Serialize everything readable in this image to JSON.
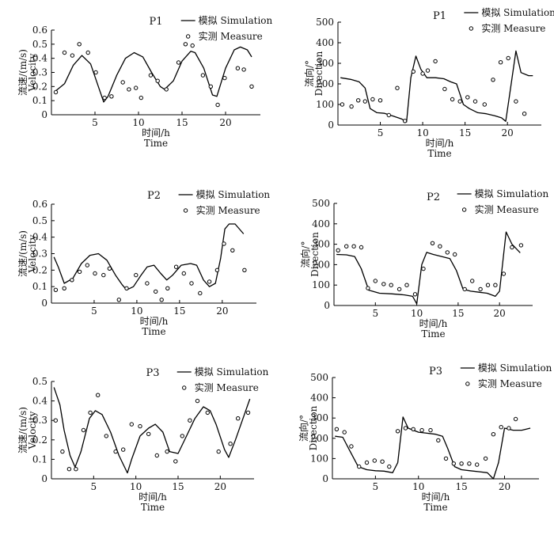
{
  "common": {
    "sim_legend": "模拟 Simulation",
    "meas_legend": "实测 Measure",
    "xlabel_cn": "时间/h",
    "xlabel_en": "Time",
    "xticks": [
      5,
      10,
      15,
      20
    ],
    "xlim": [
      0,
      24
    ]
  },
  "chart_data": [
    {
      "type": "line",
      "title": "P1",
      "quantity": "velocity",
      "ylabel_cn": "流速/(m/s)",
      "ylabel_en": "Velocity",
      "ylim": [
        0,
        0.6
      ],
      "yticks": [
        0,
        0.1,
        0.2,
        0.3,
        0.4,
        0.5,
        0.6
      ],
      "yticklabels": [
        "0",
        "0.1",
        "0.2",
        "0.3",
        "0.4",
        "0.5",
        "0.6"
      ],
      "simulation": [
        [
          0.5,
          0.17
        ],
        [
          1.5,
          0.22
        ],
        [
          2.5,
          0.35
        ],
        [
          3.5,
          0.42
        ],
        [
          4.5,
          0.36
        ],
        [
          5.5,
          0.18
        ],
        [
          6,
          0.09
        ],
        [
          6.5,
          0.13
        ],
        [
          7.5,
          0.28
        ],
        [
          8.5,
          0.4
        ],
        [
          9.5,
          0.44
        ],
        [
          10.5,
          0.41
        ],
        [
          11.5,
          0.3
        ],
        [
          12.5,
          0.2
        ],
        [
          13,
          0.18
        ],
        [
          14,
          0.24
        ],
        [
          15,
          0.38
        ],
        [
          16,
          0.45
        ],
        [
          16.5,
          0.44
        ],
        [
          17.5,
          0.33
        ],
        [
          18.5,
          0.14
        ],
        [
          19,
          0.13
        ],
        [
          20,
          0.33
        ],
        [
          21,
          0.46
        ],
        [
          21.7,
          0.48
        ],
        [
          22.5,
          0.46
        ],
        [
          23,
          0.41
        ]
      ],
      "measure": [
        [
          0.5,
          0.16
        ],
        [
          1.5,
          0.44
        ],
        [
          2.4,
          0.42
        ],
        [
          3.2,
          0.5
        ],
        [
          4.2,
          0.44
        ],
        [
          5.1,
          0.3
        ],
        [
          6.1,
          0.12
        ],
        [
          6.9,
          0.13
        ],
        [
          8.2,
          0.23
        ],
        [
          8.9,
          0.18
        ],
        [
          9.7,
          0.19
        ],
        [
          10.3,
          0.12
        ],
        [
          11.4,
          0.28
        ],
        [
          12.2,
          0.24
        ],
        [
          13.2,
          0.18
        ],
        [
          14.6,
          0.37
        ],
        [
          15.4,
          0.5
        ],
        [
          16.2,
          0.49
        ],
        [
          17.4,
          0.28
        ],
        [
          18.3,
          0.2
        ],
        [
          19.1,
          0.07
        ],
        [
          19.9,
          0.26
        ],
        [
          21.4,
          0.33
        ],
        [
          22.1,
          0.32
        ],
        [
          23,
          0.2
        ]
      ]
    },
    {
      "type": "line",
      "title": "P1",
      "quantity": "direction",
      "ylabel_cn": "流向/°",
      "ylabel_en": "Direction",
      "ylim": [
        0,
        500
      ],
      "yticks": [
        0,
        100,
        200,
        300,
        400,
        500
      ],
      "yticklabels": [
        "0",
        "100",
        "200",
        "300",
        "400",
        "500"
      ],
      "simulation": [
        [
          0.3,
          230
        ],
        [
          1.5,
          222
        ],
        [
          2.5,
          210
        ],
        [
          3.2,
          180
        ],
        [
          3.8,
          80
        ],
        [
          4.6,
          60
        ],
        [
          5.5,
          57
        ],
        [
          6.5,
          44
        ],
        [
          7.5,
          30
        ],
        [
          8.1,
          15
        ],
        [
          8.6,
          230
        ],
        [
          9.2,
          335
        ],
        [
          9.8,
          270
        ],
        [
          10.5,
          230
        ],
        [
          11.5,
          230
        ],
        [
          12.5,
          225
        ],
        [
          13.3,
          210
        ],
        [
          14,
          200
        ],
        [
          14.8,
          100
        ],
        [
          15.5,
          80
        ],
        [
          16.5,
          60
        ],
        [
          17.5,
          55
        ],
        [
          18.5,
          45
        ],
        [
          19.3,
          35
        ],
        [
          19.8,
          18
        ],
        [
          20.3,
          160
        ],
        [
          21,
          360
        ],
        [
          21.6,
          255
        ],
        [
          22.5,
          240
        ],
        [
          23,
          240
        ]
      ],
      "measure": [
        [
          0.5,
          100
        ],
        [
          1.6,
          90
        ],
        [
          2.4,
          120
        ],
        [
          3.2,
          115
        ],
        [
          4.1,
          125
        ],
        [
          5,
          120
        ],
        [
          6,
          48
        ],
        [
          7,
          180
        ],
        [
          7.9,
          20
        ],
        [
          8.9,
          260
        ],
        [
          10,
          250
        ],
        [
          10.6,
          265
        ],
        [
          11.5,
          310
        ],
        [
          12.6,
          175
        ],
        [
          13.5,
          125
        ],
        [
          14.4,
          115
        ],
        [
          15.3,
          135
        ],
        [
          16.2,
          115
        ],
        [
          17.3,
          100
        ],
        [
          18.3,
          220
        ],
        [
          19.2,
          305
        ],
        [
          20.1,
          325
        ],
        [
          21,
          115
        ],
        [
          22,
          55
        ]
      ]
    },
    {
      "type": "line",
      "title": "P2",
      "quantity": "velocity",
      "ylabel_cn": "流速/(m/s)",
      "ylabel_en": "Velocity",
      "ylim": [
        0,
        0.6
      ],
      "yticks": [
        0,
        0.1,
        0.2,
        0.3,
        0.4,
        0.5,
        0.6
      ],
      "yticklabels": [
        "0",
        "0.1",
        "0.2",
        "0.3",
        "0.4",
        "0.5",
        "0.6"
      ],
      "simulation": [
        [
          0.3,
          0.28
        ],
        [
          0.8,
          0.22
        ],
        [
          1.5,
          0.12
        ],
        [
          2.5,
          0.15
        ],
        [
          3.5,
          0.24
        ],
        [
          4.5,
          0.29
        ],
        [
          5.5,
          0.3
        ],
        [
          6.5,
          0.26
        ],
        [
          7.5,
          0.17
        ],
        [
          8.3,
          0.11
        ],
        [
          8.8,
          0.08
        ],
        [
          9.6,
          0.1
        ],
        [
          10.5,
          0.17
        ],
        [
          11.2,
          0.22
        ],
        [
          12,
          0.23
        ],
        [
          12.8,
          0.18
        ],
        [
          13.5,
          0.14
        ],
        [
          14.2,
          0.17
        ],
        [
          15.2,
          0.23
        ],
        [
          16.3,
          0.24
        ],
        [
          17,
          0.23
        ],
        [
          17.8,
          0.14
        ],
        [
          18.5,
          0.1
        ],
        [
          19.2,
          0.12
        ],
        [
          19.8,
          0.27
        ],
        [
          20.3,
          0.45
        ],
        [
          20.8,
          0.48
        ],
        [
          21.5,
          0.48
        ],
        [
          22.5,
          0.42
        ]
      ],
      "measure": [
        [
          0.5,
          0.08
        ],
        [
          1.5,
          0.09
        ],
        [
          2.4,
          0.14
        ],
        [
          3.3,
          0.19
        ],
        [
          4.2,
          0.23
        ],
        [
          5.1,
          0.18
        ],
        [
          6.1,
          0.17
        ],
        [
          6.8,
          0.21
        ],
        [
          7.9,
          0.02
        ],
        [
          8.8,
          0.09
        ],
        [
          9.9,
          0.17
        ],
        [
          11.2,
          0.12
        ],
        [
          12.2,
          0.07
        ],
        [
          12.9,
          0.02
        ],
        [
          13.6,
          0.09
        ],
        [
          14.6,
          0.22
        ],
        [
          15.5,
          0.18
        ],
        [
          16.4,
          0.12
        ],
        [
          17.4,
          0.06
        ],
        [
          18.5,
          0.13
        ],
        [
          19.4,
          0.2
        ],
        [
          20.2,
          0.36
        ],
        [
          21.2,
          0.32
        ],
        [
          22.6,
          0.2
        ]
      ]
    },
    {
      "type": "line",
      "title": "P2",
      "quantity": "direction",
      "ylabel_cn": "流向/°",
      "ylabel_en": "Direction",
      "ylim": [
        0,
        500
      ],
      "yticks": [
        0,
        100,
        200,
        300,
        400,
        500
      ],
      "yticklabels": [
        "0",
        "100",
        "200",
        "300",
        "400",
        "500"
      ],
      "simulation": [
        [
          0.3,
          250
        ],
        [
          1.5,
          248
        ],
        [
          2.5,
          240
        ],
        [
          3.3,
          180
        ],
        [
          4.2,
          75
        ],
        [
          5.5,
          60
        ],
        [
          7,
          57
        ],
        [
          8.5,
          52
        ],
        [
          9.5,
          45
        ],
        [
          10,
          8
        ],
        [
          10.6,
          200
        ],
        [
          11.2,
          260
        ],
        [
          12,
          250
        ],
        [
          13,
          240
        ],
        [
          14,
          230
        ],
        [
          14.8,
          170
        ],
        [
          15.6,
          80
        ],
        [
          16.5,
          70
        ],
        [
          17.5,
          65
        ],
        [
          18.5,
          60
        ],
        [
          19.5,
          45
        ],
        [
          20,
          70
        ],
        [
          20.8,
          360
        ],
        [
          21.5,
          300
        ],
        [
          22.5,
          258
        ]
      ],
      "measure": [
        [
          0.5,
          270
        ],
        [
          1.5,
          290
        ],
        [
          2.4,
          290
        ],
        [
          3.3,
          285
        ],
        [
          4.1,
          85
        ],
        [
          5,
          120
        ],
        [
          6,
          105
        ],
        [
          6.9,
          100
        ],
        [
          7.9,
          80
        ],
        [
          8.8,
          100
        ],
        [
          9.8,
          55
        ],
        [
          10.8,
          180
        ],
        [
          11.9,
          305
        ],
        [
          12.8,
          290
        ],
        [
          13.7,
          260
        ],
        [
          14.6,
          250
        ],
        [
          15.8,
          80
        ],
        [
          16.7,
          120
        ],
        [
          17.7,
          80
        ],
        [
          18.6,
          100
        ],
        [
          19.5,
          100
        ],
        [
          20.5,
          155
        ],
        [
          21.5,
          285
        ],
        [
          22.6,
          295
        ]
      ]
    },
    {
      "type": "line",
      "title": "P3",
      "quantity": "velocity",
      "ylabel_cn": "流速/(m/s)",
      "ylabel_en": "Velocity",
      "ylim": [
        0,
        0.5
      ],
      "yticks": [
        0,
        0.1,
        0.2,
        0.3,
        0.4,
        0.5
      ],
      "yticklabels": [
        "0",
        "0.1",
        "0.2",
        "0.3",
        "0.4",
        "0.5"
      ],
      "simulation": [
        [
          0.3,
          0.47
        ],
        [
          1,
          0.38
        ],
        [
          1.5,
          0.25
        ],
        [
          2.2,
          0.12
        ],
        [
          2.8,
          0.06
        ],
        [
          3.5,
          0.14
        ],
        [
          4.5,
          0.31
        ],
        [
          5.2,
          0.35
        ],
        [
          6,
          0.33
        ],
        [
          7,
          0.24
        ],
        [
          8,
          0.12
        ],
        [
          9,
          0.03
        ],
        [
          9.5,
          0.1
        ],
        [
          10.5,
          0.22
        ],
        [
          11.5,
          0.26
        ],
        [
          12.3,
          0.28
        ],
        [
          13.2,
          0.24
        ],
        [
          14,
          0.14
        ],
        [
          15,
          0.13
        ],
        [
          16,
          0.22
        ],
        [
          17,
          0.31
        ],
        [
          18,
          0.37
        ],
        [
          18.8,
          0.35
        ],
        [
          19.5,
          0.28
        ],
        [
          20.5,
          0.15
        ],
        [
          21,
          0.11
        ],
        [
          21.8,
          0.2
        ],
        [
          23.5,
          0.41
        ]
      ],
      "measure": [
        [
          0.5,
          0.3
        ],
        [
          1.3,
          0.14
        ],
        [
          2.1,
          0.05
        ],
        [
          2.9,
          0.05
        ],
        [
          3.8,
          0.25
        ],
        [
          4.6,
          0.34
        ],
        [
          5.5,
          0.43
        ],
        [
          6.5,
          0.22
        ],
        [
          7.6,
          0.14
        ],
        [
          8.5,
          0.15
        ],
        [
          9.5,
          0.28
        ],
        [
          10.5,
          0.27
        ],
        [
          11.5,
          0.23
        ],
        [
          12.5,
          0.12
        ],
        [
          13.7,
          0.14
        ],
        [
          14.7,
          0.09
        ],
        [
          15.5,
          0.22
        ],
        [
          16.4,
          0.3
        ],
        [
          17.3,
          0.4
        ],
        [
          18.5,
          0.34
        ],
        [
          19.8,
          0.14
        ],
        [
          21.2,
          0.18
        ],
        [
          22.1,
          0.31
        ],
        [
          23.3,
          0.34
        ]
      ]
    },
    {
      "type": "line",
      "title": "P3",
      "quantity": "direction",
      "ylabel_cn": "流向/°",
      "ylabel_en": "Direction",
      "ylim": [
        0,
        500
      ],
      "yticks": [
        0,
        100,
        200,
        300,
        400,
        500
      ],
      "yticklabels": [
        "0",
        "100",
        "200",
        "300",
        "400",
        "500"
      ],
      "simulation": [
        [
          0.3,
          210
        ],
        [
          1.2,
          205
        ],
        [
          2,
          140
        ],
        [
          3,
          60
        ],
        [
          4,
          45
        ],
        [
          5,
          40
        ],
        [
          6,
          38
        ],
        [
          7,
          30
        ],
        [
          7.6,
          80
        ],
        [
          8.2,
          305
        ],
        [
          8.8,
          250
        ],
        [
          10,
          230
        ],
        [
          11,
          225
        ],
        [
          12,
          220
        ],
        [
          12.8,
          210
        ],
        [
          13.4,
          150
        ],
        [
          14.2,
          60
        ],
        [
          15,
          45
        ],
        [
          16,
          40
        ],
        [
          17,
          35
        ],
        [
          18,
          30
        ],
        [
          18.7,
          0
        ],
        [
          19.3,
          80
        ],
        [
          20,
          250
        ],
        [
          21,
          240
        ],
        [
          22,
          240
        ],
        [
          23,
          250
        ]
      ],
      "measure": [
        [
          0.5,
          245
        ],
        [
          1.4,
          230
        ],
        [
          2.2,
          160
        ],
        [
          3.1,
          60
        ],
        [
          4,
          80
        ],
        [
          4.9,
          90
        ],
        [
          5.8,
          85
        ],
        [
          6.6,
          60
        ],
        [
          7.6,
          235
        ],
        [
          8.5,
          250
        ],
        [
          9.4,
          245
        ],
        [
          10.4,
          240
        ],
        [
          11.4,
          240
        ],
        [
          12.3,
          190
        ],
        [
          13.2,
          100
        ],
        [
          14.1,
          75
        ],
        [
          15,
          75
        ],
        [
          15.9,
          75
        ],
        [
          16.8,
          70
        ],
        [
          17.8,
          100
        ],
        [
          18.7,
          220
        ],
        [
          19.6,
          255
        ],
        [
          20.5,
          250
        ],
        [
          21.3,
          295
        ]
      ]
    }
  ]
}
